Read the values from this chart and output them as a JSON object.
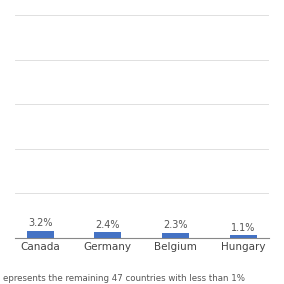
{
  "categories": [
    "Canada",
    "Germany",
    "Belgium",
    "Hungary"
  ],
  "values": [
    3.2,
    2.4,
    2.3,
    1.1
  ],
  "labels": [
    "3.2%",
    "2.4%",
    "2.3%",
    "1.1%"
  ],
  "bar_color": "#4472C4",
  "ylim": [
    0,
    100
  ],
  "yticks": [
    0,
    20,
    40,
    60,
    80,
    100
  ],
  "background_color": "#ffffff",
  "footnote": "epresents the remaining 47 countries with less than 1%",
  "grid_color": "#e0e0e0",
  "label_fontsize": 7.0,
  "tick_fontsize": 7.5,
  "footnote_fontsize": 6.2,
  "bar_width": 0.4
}
